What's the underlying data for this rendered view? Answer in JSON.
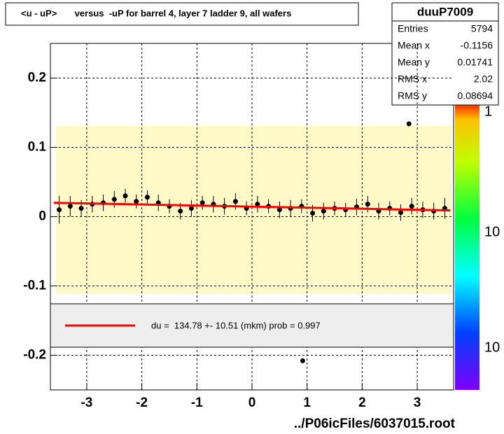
{
  "chart_data": {
    "type": "profile",
    "title": "<u - uP>       versus  -uP for barrel 4, layer 7 ladder 9, all wafers",
    "stats": {
      "name": "duuP7009",
      "rows": [
        {
          "label": "Entries",
          "value": 5794
        },
        {
          "label": "Mean x",
          "value": -0.1156
        },
        {
          "label": "Mean y",
          "value": 0.01741
        },
        {
          "label": "RMS x",
          "value": 2.02
        },
        {
          "label": "RMS y",
          "value": 0.08694
        }
      ]
    },
    "xlim": [
      -3.66,
      3.66
    ],
    "ylim": [
      -0.25,
      0.25
    ],
    "xticks": [
      -3,
      -2,
      -1,
      0,
      1,
      2,
      3
    ],
    "yticks": [
      -0.2,
      -0.1,
      0,
      0.1,
      0.2
    ],
    "grid": true,
    "colorbar_labels": [
      "1",
      "10",
      "10"
    ],
    "series": [
      {
        "name": "profile",
        "color": "#000000",
        "x": [
          -3.5,
          -3.3,
          -3.1,
          -2.9,
          -2.7,
          -2.5,
          -2.3,
          -2.1,
          -1.9,
          -1.7,
          -1.5,
          -1.3,
          -1.1,
          -0.9,
          -0.7,
          -0.5,
          -0.3,
          -0.1,
          0.1,
          0.3,
          0.5,
          0.7,
          0.9,
          1.1,
          1.3,
          1.5,
          1.7,
          1.9,
          2.1,
          2.3,
          2.5,
          2.7,
          2.9,
          3.1,
          3.3,
          3.5
        ],
        "values": [
          0.01,
          0.015,
          0.012,
          0.018,
          0.02,
          0.025,
          0.03,
          0.022,
          0.028,
          0.02,
          0.015,
          0.008,
          0.012,
          0.02,
          0.018,
          0.015,
          0.022,
          0.012,
          0.018,
          0.015,
          0.01,
          0.012,
          0.015,
          0.005,
          0.008,
          0.012,
          0.01,
          0.014,
          0.018,
          0.008,
          0.012,
          0.006,
          0.015,
          0.01,
          0.008,
          0.012
        ],
        "errors": [
          0.02,
          0.015,
          0.012,
          0.012,
          0.012,
          0.012,
          0.01,
          0.01,
          0.01,
          0.012,
          0.01,
          0.012,
          0.012,
          0.01,
          0.012,
          0.012,
          0.012,
          0.01,
          0.012,
          0.01,
          0.012,
          0.012,
          0.01,
          0.012,
          0.012,
          0.01,
          0.01,
          0.012,
          0.012,
          0.012,
          0.01,
          0.012,
          0.012,
          0.012,
          0.012,
          0.015
        ]
      },
      {
        "name": "outliers",
        "color": "#000000",
        "x": [
          2.85,
          0.92
        ],
        "values": [
          0.134,
          -0.208
        ]
      }
    ],
    "fit": {
      "color": "#ff0000",
      "x": [
        -3.6,
        3.6
      ],
      "values": [
        0.02,
        0.009
      ]
    },
    "legend": "du =  134.78 +- 10.51 (mkm) prob = 0.997",
    "footer": "../P06icFiles/6037015.root"
  }
}
